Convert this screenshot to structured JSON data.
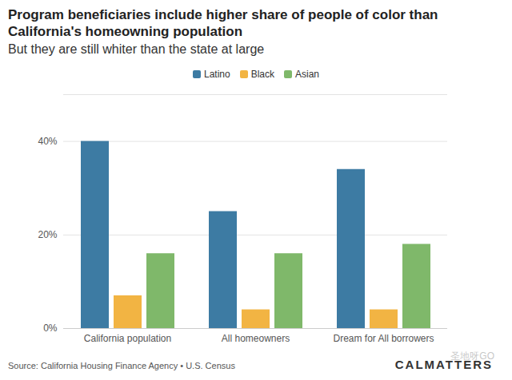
{
  "chart_data": {
    "type": "bar",
    "title": "Program beneficiaries include higher share of people of color than California's homeowning population",
    "subtitle": "But they are still whiter than the state at large",
    "categories": [
      "California population",
      "All homeowners",
      "Dream for All borrowers"
    ],
    "series": [
      {
        "name": "Latino",
        "color": "#3d7ba3",
        "values": [
          40,
          25,
          34
        ]
      },
      {
        "name": "Black",
        "color": "#f2b443",
        "values": [
          7,
          4,
          4
        ]
      },
      {
        "name": "Asian",
        "color": "#7fb86a",
        "values": [
          16,
          16,
          18
        ]
      }
    ],
    "ylim": [
      0,
      50
    ],
    "yticks": [
      {
        "value": 0,
        "label": "0%"
      },
      {
        "value": 20,
        "label": "20%"
      },
      {
        "value": 40,
        "label": "40%"
      }
    ],
    "grid": true,
    "legend": "top",
    "source": "Source: California Housing Finance Agency • U.S. Census"
  },
  "logo": "CALMATTERS",
  "watermark": "圣地呀GO"
}
